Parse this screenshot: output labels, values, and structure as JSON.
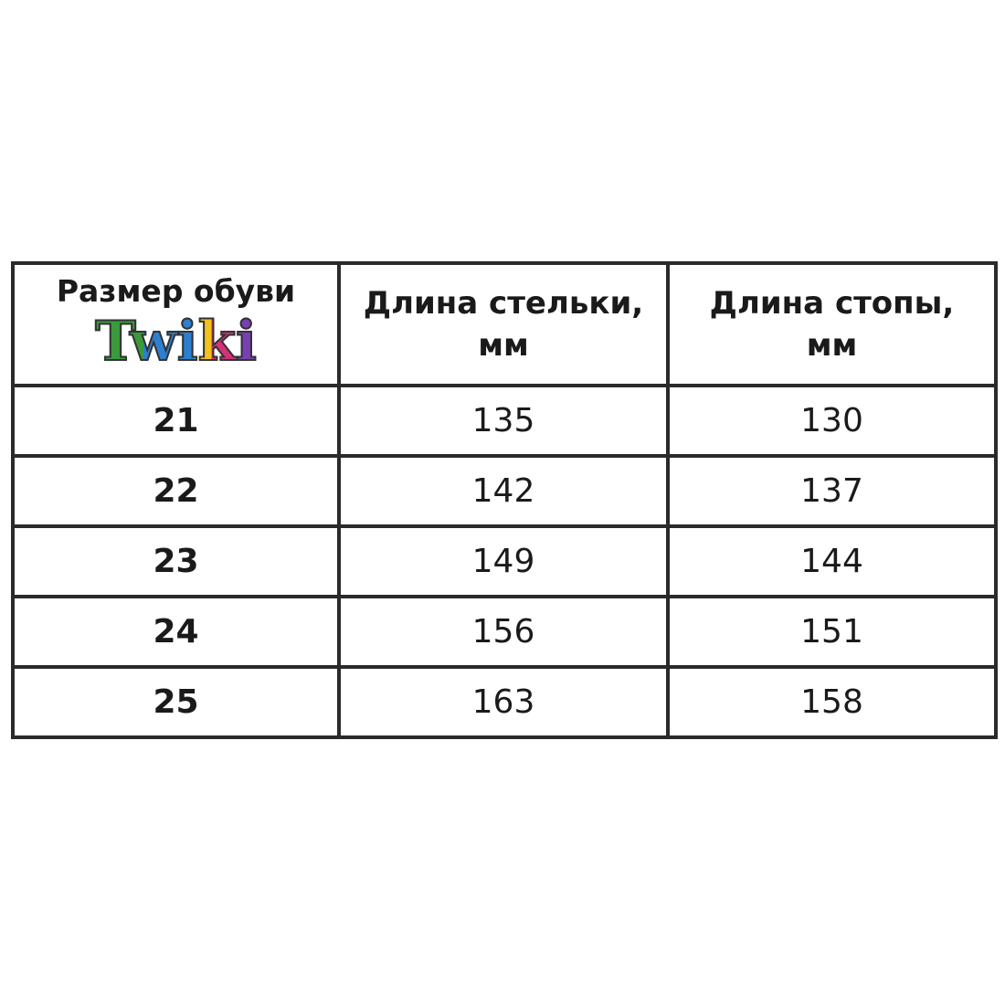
{
  "table": {
    "header": {
      "size": {
        "title": "Размер обуви",
        "logo": "Twiki"
      },
      "insole": [
        "Длина стельки,",
        "мм"
      ],
      "foot": [
        "Длина стопы,",
        "мм"
      ]
    },
    "rows": [
      [
        21,
        135,
        130
      ],
      [
        22,
        142,
        137
      ],
      [
        23,
        149,
        144
      ],
      [
        24,
        156,
        151
      ],
      [
        25,
        163,
        158
      ]
    ]
  }
}
